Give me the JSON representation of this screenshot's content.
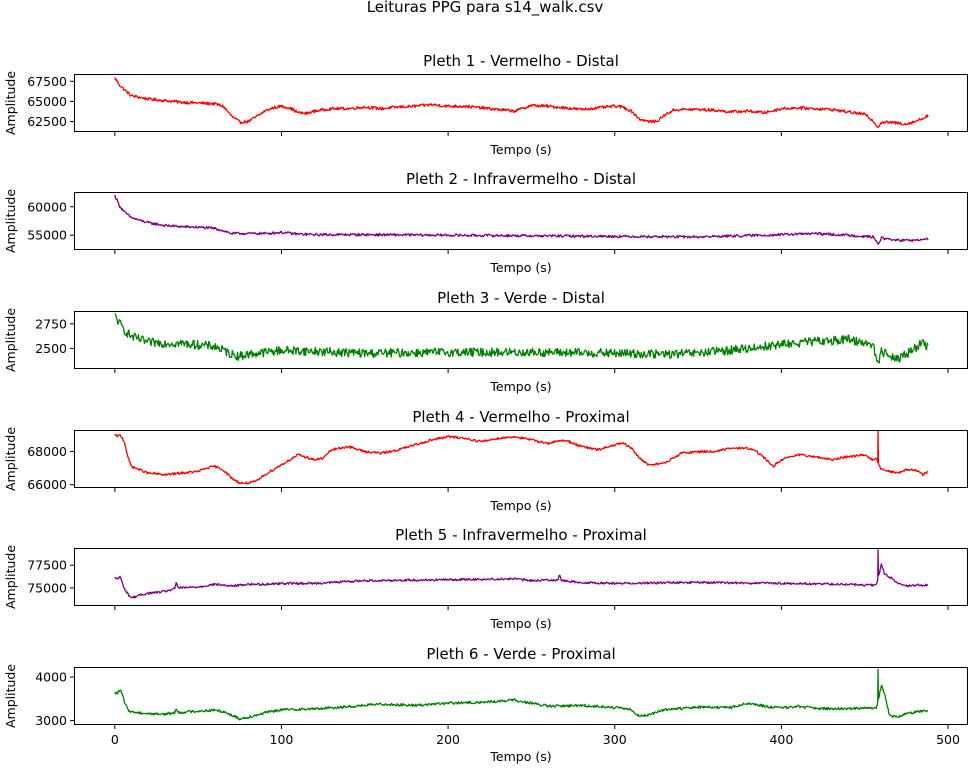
{
  "figure": {
    "suptitle": "Leituras PPG para s14_walk.csv"
  },
  "chart_data": [
    {
      "type": "line",
      "title": "Pleth 1 - Vermelho - Distal",
      "xlabel": "Tempo (s)",
      "ylabel": "Amplitude",
      "color": "#ff0000",
      "xlim": [
        -24.5,
        512
      ],
      "ylim": [
        61200,
        68400
      ],
      "yticks": [
        62500,
        65000,
        67500
      ],
      "ytick_labels": [
        "62500",
        "65000",
        "67500"
      ],
      "xticks": [
        0,
        100,
        200,
        300,
        400,
        500
      ],
      "xtick_labels": [
        "",
        "",
        "",
        "",
        "",
        ""
      ],
      "noise": 180,
      "spike": null,
      "x": [
        0,
        3,
        6,
        10,
        15,
        20,
        30,
        40,
        50,
        60,
        65,
        70,
        75,
        80,
        85,
        90,
        95,
        100,
        105,
        110,
        115,
        120,
        130,
        140,
        150,
        160,
        170,
        180,
        190,
        200,
        210,
        220,
        230,
        240,
        250,
        260,
        270,
        280,
        290,
        300,
        305,
        310,
        315,
        320,
        325,
        330,
        335,
        340,
        350,
        360,
        370,
        380,
        390,
        400,
        410,
        420,
        430,
        440,
        450,
        455,
        458,
        460,
        465,
        470,
        475,
        480,
        485,
        488
      ],
      "y": [
        67900,
        67000,
        66400,
        65700,
        65500,
        65300,
        65100,
        64900,
        64800,
        64700,
        64400,
        63200,
        62400,
        62500,
        63100,
        63800,
        64200,
        64400,
        64200,
        63600,
        63500,
        63800,
        64100,
        64100,
        64300,
        64100,
        64300,
        64400,
        64600,
        64400,
        64400,
        64200,
        64000,
        63800,
        64500,
        64400,
        64200,
        64000,
        64200,
        64400,
        64300,
        63800,
        62800,
        62500,
        62500,
        63300,
        63900,
        64000,
        64000,
        63900,
        63700,
        63800,
        63600,
        64100,
        64200,
        64100,
        64000,
        63700,
        63400,
        62600,
        61800,
        62400,
        62400,
        62300,
        62200,
        62500,
        62900,
        63300
      ]
    },
    {
      "type": "line",
      "title": "Pleth 2 - Infravermelho - Distal",
      "xlabel": "Tempo (s)",
      "ylabel": "Amplitude",
      "color": "#800080",
      "xlim": [
        -24.5,
        512
      ],
      "ylim": [
        52400,
        62600
      ],
      "yticks": [
        55000,
        60000
      ],
      "ytick_labels": [
        "55000",
        "60000"
      ],
      "xticks": [
        0,
        100,
        200,
        300,
        400,
        500
      ],
      "xtick_labels": [
        "",
        "",
        "",
        "",
        "",
        ""
      ],
      "noise": 220,
      "spike": null,
      "x": [
        0,
        3,
        6,
        10,
        15,
        20,
        30,
        40,
        50,
        60,
        65,
        70,
        80,
        90,
        100,
        110,
        120,
        150,
        200,
        250,
        300,
        350,
        400,
        420,
        440,
        455,
        458,
        460,
        465,
        470,
        480,
        488
      ],
      "y": [
        62000,
        60100,
        59000,
        58100,
        57600,
        57200,
        56700,
        56500,
        56400,
        56200,
        55800,
        55300,
        55300,
        55300,
        55500,
        55200,
        55100,
        55100,
        55000,
        54900,
        54800,
        54700,
        55100,
        55300,
        55000,
        54700,
        53500,
        54500,
        54300,
        54100,
        54100,
        54300
      ]
    },
    {
      "type": "line",
      "title": "Pleth 3 - Verde - Distal",
      "xlabel": "Tempo (s)",
      "ylabel": "Amplitude",
      "color": "#008000",
      "xlim": [
        -24.5,
        512
      ],
      "ylim": [
        2290,
        2880
      ],
      "yticks": [
        2500,
        2750
      ],
      "ytick_labels": [
        "2500",
        "2750"
      ],
      "xticks": [
        0,
        100,
        200,
        300,
        400,
        500
      ],
      "xtick_labels": [
        "",
        "",
        "",
        "",
        "",
        ""
      ],
      "noise": 45,
      "spike": null,
      "x": [
        0,
        3,
        6,
        10,
        20,
        40,
        60,
        70,
        75,
        80,
        100,
        120,
        150,
        200,
        250,
        300,
        330,
        350,
        380,
        400,
        420,
        440,
        450,
        455,
        458,
        460,
        465,
        470,
        475,
        480,
        485,
        488
      ],
      "y": [
        2830,
        2750,
        2680,
        2620,
        2560,
        2550,
        2520,
        2440,
        2420,
        2440,
        2480,
        2470,
        2450,
        2460,
        2460,
        2450,
        2440,
        2450,
        2500,
        2540,
        2570,
        2590,
        2560,
        2540,
        2330,
        2470,
        2430,
        2400,
        2440,
        2500,
        2560,
        2520
      ]
    },
    {
      "type": "line",
      "title": "Pleth 4 - Vermelho - Proximal",
      "xlabel": "Tempo (s)",
      "ylabel": "Amplitude",
      "color": "#ff0000",
      "xlim": [
        -24.5,
        512
      ],
      "ylim": [
        65800,
        69300
      ],
      "yticks": [
        66000,
        68000
      ],
      "ytick_labels": [
        "66000",
        "68000"
      ],
      "xticks": [
        0,
        100,
        200,
        300,
        400,
        500
      ],
      "xtick_labels": [
        "",
        "",
        "",
        "",
        "",
        ""
      ],
      "noise": 70,
      "spike": {
        "x": 458,
        "y": 69300
      },
      "x": [
        0,
        2,
        3,
        4,
        6,
        8,
        10,
        15,
        20,
        30,
        40,
        50,
        55,
        60,
        65,
        70,
        75,
        80,
        85,
        90,
        100,
        110,
        120,
        125,
        130,
        140,
        150,
        160,
        170,
        180,
        190,
        200,
        210,
        220,
        230,
        240,
        250,
        260,
        270,
        280,
        290,
        300,
        305,
        310,
        315,
        320,
        330,
        340,
        350,
        360,
        370,
        380,
        385,
        390,
        395,
        400,
        410,
        420,
        430,
        440,
        450,
        455,
        457,
        460,
        462,
        465,
        470,
        475,
        480,
        485,
        488
      ],
      "y": [
        69000,
        68900,
        69000,
        68900,
        68500,
        67600,
        67100,
        66900,
        66700,
        66600,
        66700,
        66800,
        67000,
        67100,
        66900,
        66400,
        66100,
        66100,
        66200,
        66600,
        67200,
        67800,
        67500,
        67600,
        68100,
        68300,
        68000,
        67900,
        68100,
        68400,
        68700,
        68900,
        68800,
        68600,
        68800,
        68900,
        68700,
        68500,
        68700,
        68300,
        68100,
        68400,
        68500,
        68200,
        67600,
        67200,
        67300,
        67900,
        68000,
        68000,
        68200,
        68200,
        68000,
        67600,
        67100,
        67500,
        67800,
        67700,
        67500,
        67700,
        67800,
        67500,
        67600,
        66900,
        66900,
        66800,
        66700,
        66900,
        66900,
        66600,
        66800
      ]
    },
    {
      "type": "line",
      "title": "Pleth 5 - Infravermelho - Proximal",
      "xlabel": "Tempo (s)",
      "ylabel": "Amplitude",
      "color": "#800080",
      "xlim": [
        -24.5,
        512
      ],
      "ylim": [
        73000,
        79400
      ],
      "yticks": [
        75000,
        77500
      ],
      "ytick_labels": [
        "75000",
        "77500"
      ],
      "xticks": [
        0,
        100,
        200,
        300,
        400,
        500
      ],
      "xtick_labels": [
        "",
        "",
        "",
        "",
        "",
        ""
      ],
      "noise": 120,
      "spike": {
        "x": 458,
        "y": 79200
      },
      "x": [
        0,
        2,
        3,
        4,
        6,
        8,
        10,
        15,
        20,
        30,
        36,
        37,
        38,
        40,
        50,
        60,
        70,
        80,
        90,
        100,
        120,
        150,
        200,
        240,
        250,
        266,
        267,
        268,
        280,
        300,
        350,
        400,
        440,
        450,
        456,
        457,
        460,
        462,
        465,
        470,
        475,
        480,
        488
      ],
      "y": [
        76100,
        76000,
        76300,
        75800,
        74800,
        74300,
        73900,
        74200,
        74400,
        74600,
        74900,
        75700,
        75000,
        75000,
        75100,
        75400,
        75200,
        75400,
        75400,
        75500,
        75500,
        75800,
        75900,
        76000,
        75800,
        75900,
        76500,
        75800,
        75600,
        75500,
        75600,
        75500,
        75400,
        75300,
        75300,
        75300,
        77600,
        76500,
        76200,
        75500,
        75200,
        75300,
        75300
      ]
    },
    {
      "type": "line",
      "title": "Pleth 6 - Verde - Proximal",
      "xlabel": "Tempo (s)",
      "ylabel": "Amplitude",
      "color": "#008000",
      "xlim": [
        -24.5,
        512
      ],
      "ylim": [
        2900,
        4230
      ],
      "yticks": [
        3000,
        4000
      ],
      "ytick_labels": [
        "3000",
        "4000"
      ],
      "xticks": [
        0,
        100,
        200,
        300,
        400,
        500
      ],
      "xtick_labels": [
        "0",
        "100",
        "200",
        "300",
        "400",
        "500"
      ],
      "noise": 30,
      "spike": {
        "x": 458,
        "y": 4180
      },
      "x": [
        0,
        2,
        3,
        4,
        6,
        8,
        10,
        15,
        20,
        30,
        36,
        37,
        38,
        40,
        50,
        60,
        65,
        70,
        75,
        80,
        90,
        100,
        120,
        140,
        160,
        180,
        200,
        220,
        240,
        250,
        260,
        280,
        300,
        310,
        315,
        320,
        325,
        330,
        350,
        370,
        380,
        390,
        400,
        410,
        420,
        440,
        450,
        456,
        457,
        460,
        462,
        465,
        470,
        475,
        480,
        488
      ],
      "y": [
        3620,
        3650,
        3700,
        3650,
        3400,
        3250,
        3200,
        3180,
        3160,
        3150,
        3180,
        3280,
        3180,
        3190,
        3220,
        3240,
        3210,
        3130,
        3040,
        3080,
        3180,
        3250,
        3270,
        3320,
        3380,
        3350,
        3400,
        3420,
        3470,
        3400,
        3330,
        3350,
        3300,
        3250,
        3100,
        3120,
        3200,
        3250,
        3310,
        3300,
        3400,
        3330,
        3290,
        3330,
        3280,
        3270,
        3290,
        3270,
        3270,
        3800,
        3600,
        3100,
        3100,
        3150,
        3200,
        3230
      ]
    }
  ]
}
